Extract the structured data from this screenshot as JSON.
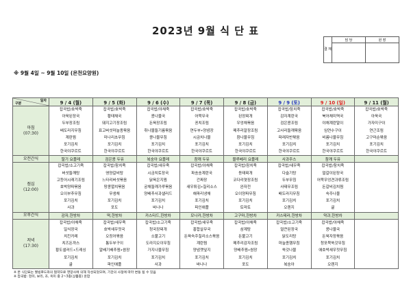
{
  "title": "2023년 9월 식 단 표",
  "approval": {
    "label": "결 재",
    "cols": [
      "담 당",
      "원 장"
    ]
  },
  "subtitle": "※ 9월 4일 ~ 9월 10일 (온천요양원)",
  "header": {
    "corner_top": "일자",
    "corner_bottom": "구분"
  },
  "days": [
    {
      "label": "9 / 4 (월)",
      "color": "#222222"
    },
    {
      "label": "9 / 5 (화)",
      "color": "#222222"
    },
    {
      "label": "9 / 6 (수)",
      "color": "#222222"
    },
    {
      "label": "9 / 7 (목)",
      "color": "#222222"
    },
    {
      "label": "9 / 8 (금)",
      "color": "#222222"
    },
    {
      "label": "9 / 9 (토)",
      "color": "#2233bb"
    },
    {
      "label": "9 / 10 (일)",
      "color": "#dd2222"
    },
    {
      "label": "9 / 11 (월)",
      "color": "#222222"
    }
  ],
  "rows": [
    {
      "type": "meal",
      "label": [
        "아침",
        "(07:30)"
      ],
      "cells": [
        [
          "잡곡밥/호박죽",
          "아욱된장국",
          "두부장조림",
          "배도라지무침",
          "계란찜",
          "포기김치",
          "한국야쿠르트"
        ],
        [
          "잡곡밥/호박죽",
          "황태채국",
          "돼지고기장조림",
          "표고버섯마늘종볶음",
          "미나리초무침",
          "포기김치",
          "한국야쿠르트"
        ],
        [
          "잡곡밥/야채죽",
          "콩나물국",
          "돈육장조림",
          "취나물들기름볶음",
          "콩나물무침",
          "포기김치",
          "한국야쿠르트"
        ],
        [
          "잡곡밥/호박죽",
          "어묵무국",
          "꽁치조림",
          "연두부•양념장",
          "시금치나물",
          "포기김치",
          "한국야쿠르트"
        ],
        [
          "잡곡밥/호박죽",
          "된장찌개",
          "우엉채볶음",
          "메추리알장조림",
          "참나물무침",
          "포기김치",
          "한국야쿠르트"
        ],
        [
          "잡곡밥/참치죽",
          "감자계란국",
          "검은콩조림",
          "고사리들깨볶음",
          "파래자반볶음",
          "포기김치",
          "한국야쿠르트"
        ],
        [
          "잡곡밥/호박죽",
          "북어채미역국",
          "야채계란말이",
          "임연수구이",
          "비름나물무침",
          "포기김치",
          "한국야쿠르트"
        ],
        [
          "잡곡밥/호박죽",
          "아욱국",
          "가자미구이",
          "연근조림",
          "고구마순볶음",
          "포기김치",
          "한국야쿠르트"
        ]
      ]
    },
    {
      "type": "snack",
      "label": [
        "오전간식"
      ],
      "cells": [
        "딸기 요플레",
        "검은콩 두유",
        "복숭아 요플레",
        "참깨 두유",
        "블루베리 요플레",
        "사과주스",
        "참깨 두유",
        ""
      ]
    },
    {
      "type": "meal",
      "label": [
        "점심",
        "(12:00)"
      ],
      "cells": [
        [
          "잡곡밥/소고기죽",
          "버섯들깨탕",
          "고등어시래기조림",
          "호박양파볶음",
          "오이부추무침",
          "포기김치",
          "사과"
        ],
        [
          "잡곡밥/참치죽",
          "영양갈비탕",
          "느타리버섯볶음",
          "땅콩멸치볶음",
          "무생채",
          "포기김치",
          "포도"
        ],
        [
          "잡곡밥/새우죽",
          "시금치토장국",
          "닭육은지찜",
          "궁채들깨가루볶음",
          "양배추사과샐러드",
          "포기김치",
          "바나나"
        ],
        [
          "잡곡밥/야채죽",
          "파송송계란국",
          "간짜장",
          "새우튀김•칠리소스",
          "해파리냉채",
          "포기김치",
          "파인애플"
        ],
        [
          "잡곡밥/참치죽",
          "동태찌개",
          "코다리엿장조림",
          "완자전",
          "오이양파무침",
          "포기김치",
          "토마토"
        ],
        [
          "잡곡밥/새우죽",
          "다슬기탕",
          "두부무침",
          "사태무조림",
          "배도라지무침",
          "포기김치",
          "오렌지"
        ],
        [
          "잡곡밥/참치죽",
          "얼갈이된장국",
          "어묵우엉견과류조림",
          "돈갈비김치찜",
          "숙주나물",
          "포기김치",
          "귤"
        ],
        [
          "",
          "",
          "",
          "",
          "",
          "",
          ""
        ]
      ]
    },
    {
      "type": "snack",
      "label": [
        "오후간식"
      ],
      "cells": [
        "감자,한방차",
        "떡,한방차",
        "카스타드,한방차",
        "모나카,한방차",
        "고구마,한방차",
        "카스테라,한방차",
        "약과,한방차",
        ""
      ]
    },
    {
      "type": "meal",
      "label": [
        "저녁",
        "(17:30)"
      ],
      "cells": [
        [
          "잡곡밥/야채죽",
          "일식장국",
          "치킨카레",
          "치즈돈까스",
          "황도샐러드•드레싱",
          "포기김치",
          "귤"
        ],
        [
          "잡곡밥/새우죽",
          "호박새우젓국",
          "오징어볶음",
          "통두부구이",
          "알배기배추찜•쌈장",
          "포기김치",
          "파인애플"
        ],
        [
          "잡곡밥/소고기죽",
          "청국장찌개",
          "소불고기",
          "도라지오이무침",
          "가지나물무침",
          "포기김치",
          "사과"
        ],
        [
          "잡곡밥/새우죽",
          "홍합살무국",
          "돈육숙주칠리소스볶음",
          "계란찜",
          "양념깻잎지",
          "포기김치",
          "바나나"
        ],
        [
          "잡곡밥/야채죽",
          "삼계탕",
          "돈불고기",
          "메추리감자조림",
          "양배추찜•쌈장",
          "포기김치",
          "포도"
        ],
        [
          "잡곡밥/소고기죽",
          "얼큰된장국",
          "닭도리탕",
          "마늘종햄무침",
          "쑥갓나물",
          "포기김치",
          "복숭아"
        ],
        [
          "잡곡밥/야채죽",
          "콩나물국",
          "돈육자장볶음",
          "청포묵쑥갓무침",
          "애호박새우젓무침",
          "포기김치",
          "오렌지"
        ],
        [
          "",
          "",
          "",
          "",
          "",
          "",
          ""
        ]
      ]
    }
  ],
  "notes": [
    "※ 본 식단표는 웰빙푸드와의 협약으로 영양사에 의해 작성되었으며, 기관의 사정에 따라 변동 될 수 있음",
    "※ 잡곡밥: 현미, 보리, 조, 흑미 중 2~3종(상품종) 혼합"
  ],
  "colors": {
    "header_bg": "#e2efda",
    "saturday": "#2233bb",
    "sunday": "#dd2222"
  }
}
